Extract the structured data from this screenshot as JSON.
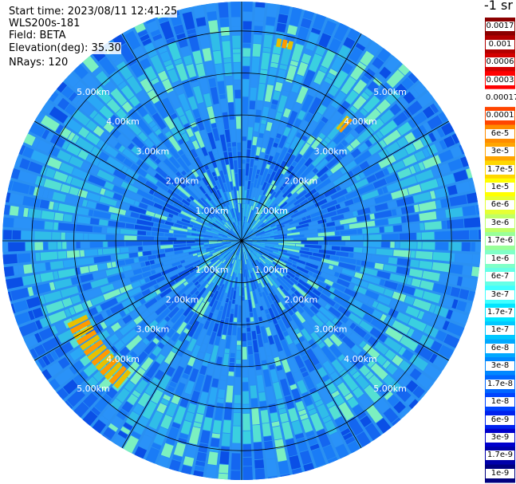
{
  "header": {
    "start_time": "Start time: 2023/08/11 12:41:25",
    "instrument": "WLS200s-181",
    "field": "Field: BETA",
    "elevation": "Elevation(deg): 35.30",
    "nrays": "NRays: 120"
  },
  "colorbar": {
    "unit_label": "-1 sr",
    "ticks": [
      "0.0017",
      "0.001",
      "0.0006",
      "0.0003",
      "0.00017",
      "0.0001",
      "6e-5",
      "3e-5",
      "1.7e-5",
      "1e-5",
      "6e-6",
      "3e-6",
      "1.7e-6",
      "1e-6",
      "6e-7",
      "3e-7",
      "1.7e-7",
      "1e-7",
      "6e-8",
      "3e-8",
      "1.7e-8",
      "1e-8",
      "6e-9",
      "3e-9",
      "1.7e-9",
      "1e-9"
    ],
    "colors": [
      "#8b0000",
      "#b20000",
      "#d40000",
      "#ff0000",
      "#ffffff",
      "#ff4500",
      "#ff8c00",
      "#ffa500",
      "#ffd700",
      "#ffff00",
      "#e6ff33",
      "#bfff66",
      "#99ff99",
      "#80ffc8",
      "#66ffe6",
      "#40ffff",
      "#00e5ff",
      "#00c8ff",
      "#00a8ff",
      "#0088ff",
      "#0066ff",
      "#0044ff",
      "#0022ee",
      "#0000cc",
      "#0000aa",
      "#000080"
    ]
  },
  "chart_data": {
    "type": "heatmap",
    "projection": "polar-ppi",
    "field": "BETA",
    "elevation_deg": 35.3,
    "nrays": 120,
    "range_rings_km": [
      1,
      2,
      3,
      4,
      5
    ],
    "ring_labels": [
      "1.00km",
      "2.00km",
      "3.00km",
      "4.00km",
      "5.00km"
    ],
    "max_range_km": 5.7,
    "radial_lines_deg": [
      0,
      30,
      60,
      90,
      120,
      150,
      180,
      210,
      240,
      270,
      300,
      330
    ],
    "grid": true,
    "colorbar_position": "right",
    "features": [
      {
        "description": "enhanced backscatter ring",
        "range_km": 4.3,
        "level": "1.7e-7"
      },
      {
        "description": "strong echo arc",
        "azimuth_deg_from": 220,
        "azimuth_deg_to": 245,
        "range_km_from": 4.1,
        "range_km_to": 4.6,
        "level": "3e-5"
      },
      {
        "description": "strong echo segment",
        "azimuth_deg_from": 40,
        "azimuth_deg_to": 43,
        "range_km_from": 3.5,
        "range_km_to": 3.9,
        "level": "3e-5"
      },
      {
        "description": "strong echo segment",
        "azimuth_deg_from": 10,
        "azimuth_deg_to": 15,
        "range_km_from": 4.7,
        "range_km_to": 4.9,
        "level": "6e-5"
      }
    ]
  }
}
